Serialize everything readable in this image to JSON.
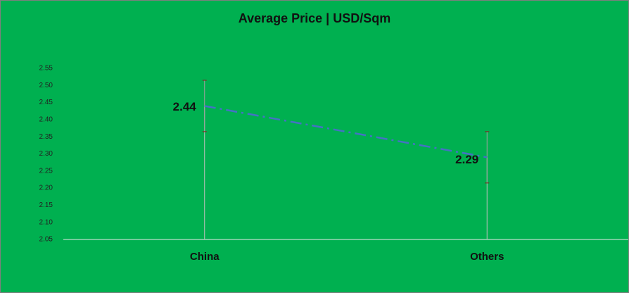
{
  "chart_data": {
    "type": "line",
    "title": "Average Price | USD/Sqm",
    "categories": [
      "China",
      "Others"
    ],
    "values": [
      2.44,
      2.29
    ],
    "errors": [
      0.075,
      0.075
    ],
    "color": "#4472c4",
    "ylim": [
      2.05,
      2.55
    ],
    "yticks": [
      2.05,
      {
        "value": 2.1,
        "label": "2.10"
      },
      2.15,
      {
        "value": 2.2,
        "label": "2.20"
      },
      2.25,
      {
        "value": 2.3,
        "label": "2.30"
      },
      2.35,
      {
        "value": 2.4,
        "label": "2.40"
      },
      2.45,
      {
        "value": 2.5,
        "label": "2.50"
      },
      2.55
    ],
    "grid": false
  }
}
